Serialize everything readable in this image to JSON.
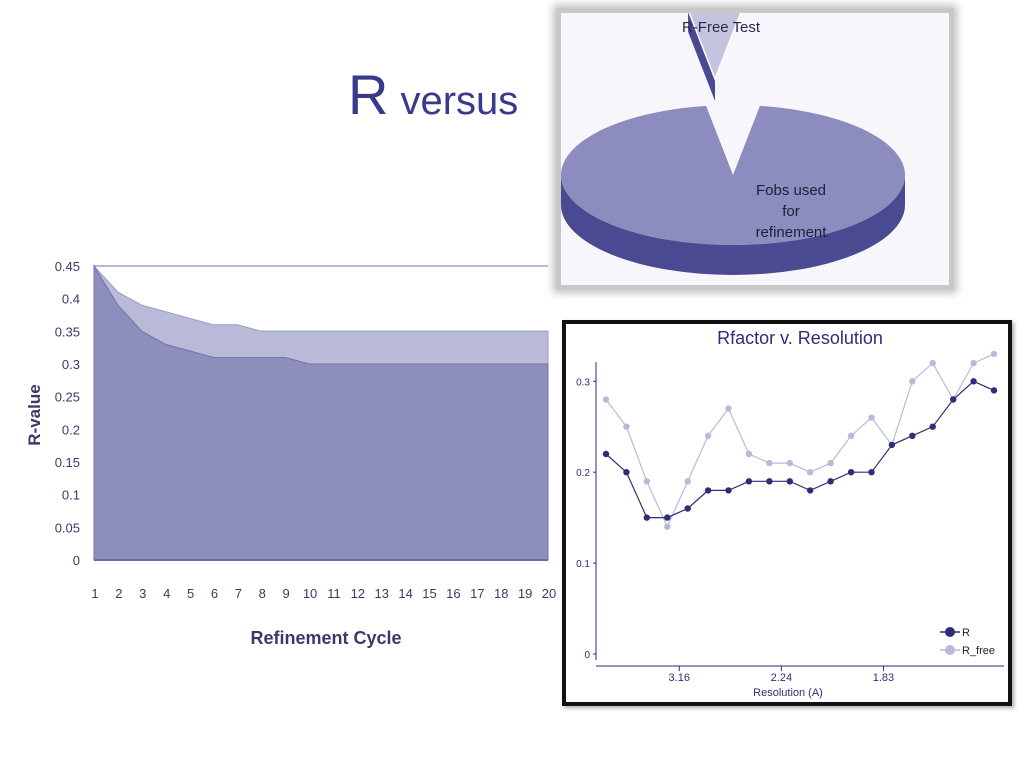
{
  "slide": {
    "title_big": "R",
    "title_small": "versus"
  },
  "colors": {
    "title": "#3a3a8c",
    "rfree_fill": "#b9b9d8",
    "r_fill": "#8e8ebd",
    "r_line": "#2e2e78",
    "rfree_line": "#babad8",
    "pie_main": "#8c8cbe",
    "pie_side": "#4a4a92",
    "pie_slice": "#c4c4df"
  },
  "chart_data": [
    {
      "type": "area",
      "xlabel": "Refinement Cycle",
      "ylabel": "R-value",
      "ylim": [
        0,
        0.45
      ],
      "yticks": [
        "0",
        "0.05",
        "0.1",
        "0.15",
        "0.2",
        "0.25",
        "0.3",
        "0.35",
        "0.4",
        "0.45"
      ],
      "categories": [
        "1",
        "2",
        "3",
        "4",
        "5",
        "6",
        "7",
        "8",
        "9",
        "10",
        "11",
        "12",
        "13",
        "14",
        "15",
        "16",
        "17",
        "18",
        "19",
        "20"
      ],
      "series": [
        {
          "name": "",
          "values": [
            0.45,
            0.41,
            0.39,
            0.38,
            0.37,
            0.36,
            0.36,
            0.35,
            0.35,
            0.35,
            0.35,
            0.35,
            0.35,
            0.35,
            0.35,
            0.35,
            0.35,
            0.35,
            0.35,
            0.35
          ]
        },
        {
          "name": "",
          "values": [
            0.45,
            0.39,
            0.35,
            0.33,
            0.32,
            0.31,
            0.31,
            0.31,
            0.31,
            0.3,
            0.3,
            0.3,
            0.3,
            0.3,
            0.3,
            0.3,
            0.3,
            0.3,
            0.3,
            0.3
          ]
        }
      ]
    },
    {
      "type": "pie",
      "labels": [
        "R-Free Test",
        "Fobs used for refinement"
      ],
      "values": [
        5,
        95
      ],
      "label_lines": [
        [
          "R-Free Test"
        ],
        [
          "Fobs used",
          "for",
          "refinement"
        ]
      ]
    },
    {
      "type": "line",
      "title": "Rfactor v. Resolution",
      "xlabel": "Resolution (A)",
      "xtick_labels": [
        "3.16",
        "2.24",
        "1.83"
      ],
      "xtick_positions": [
        4,
        9,
        14
      ],
      "ylim": [
        0,
        0.33
      ],
      "yticks": [
        "0",
        "0.1",
        "0.2",
        "0.3"
      ],
      "x": [
        1,
        2,
        3,
        4,
        5,
        6,
        7,
        8,
        9,
        10,
        11,
        12,
        13,
        14,
        15,
        16,
        17,
        18,
        19,
        20
      ],
      "series": [
        {
          "name": "R",
          "values": [
            0.22,
            0.2,
            0.15,
            0.15,
            0.16,
            0.18,
            0.18,
            0.19,
            0.19,
            0.19,
            0.18,
            0.19,
            0.2,
            0.2,
            0.23,
            0.24,
            0.25,
            0.28,
            0.3,
            0.29
          ]
        },
        {
          "name": "R_free",
          "values": [
            0.28,
            0.25,
            0.19,
            0.14,
            0.19,
            0.24,
            0.27,
            0.22,
            0.21,
            0.21,
            0.2,
            0.21,
            0.24,
            0.26,
            0.23,
            0.3,
            0.32,
            0.28,
            0.32,
            0.33
          ]
        }
      ]
    }
  ]
}
